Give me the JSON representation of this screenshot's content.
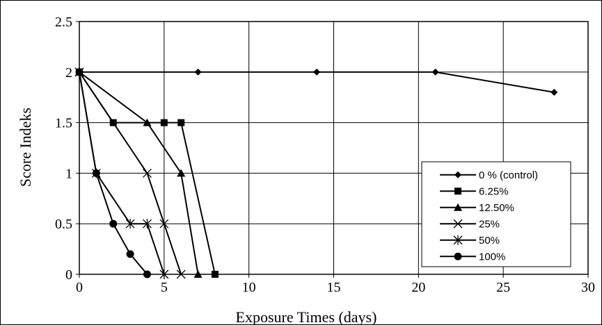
{
  "chart_data": {
    "type": "line",
    "title": "",
    "xlabel": "Exposure Times (days)",
    "ylabel": "Score Indeks",
    "xlim": [
      0,
      30
    ],
    "ylim": [
      0,
      2.5
    ],
    "xticks": [
      0,
      5,
      10,
      15,
      20,
      25,
      30
    ],
    "yticks": [
      0,
      0.5,
      1,
      1.5,
      2,
      2.5
    ],
    "grid": true,
    "legend": "right",
    "series": [
      {
        "name": "0 % (control)",
        "marker": "diamond",
        "x": [
          0,
          7,
          14,
          21,
          28
        ],
        "y": [
          2,
          2,
          2,
          2,
          1.8
        ]
      },
      {
        "name": "6.25%",
        "marker": "square",
        "x": [
          0,
          2,
          5,
          6,
          8
        ],
        "y": [
          2,
          1.5,
          1.5,
          1.5,
          0
        ]
      },
      {
        "name": "12.50%",
        "marker": "triangle",
        "x": [
          0,
          4,
          6,
          7
        ],
        "y": [
          2,
          1.5,
          1,
          0
        ]
      },
      {
        "name": "25%",
        "marker": "x",
        "x": [
          0,
          4,
          5,
          6
        ],
        "y": [
          2,
          1,
          0.5,
          0
        ]
      },
      {
        "name": "50%",
        "marker": "star",
        "x": [
          0,
          1,
          3,
          4,
          5
        ],
        "y": [
          2,
          1,
          0.5,
          0.5,
          0
        ]
      },
      {
        "name": "100%",
        "marker": "circle",
        "x": [
          0,
          1,
          2,
          3,
          4
        ],
        "y": [
          2,
          1,
          0.5,
          0.2,
          0
        ]
      }
    ]
  }
}
